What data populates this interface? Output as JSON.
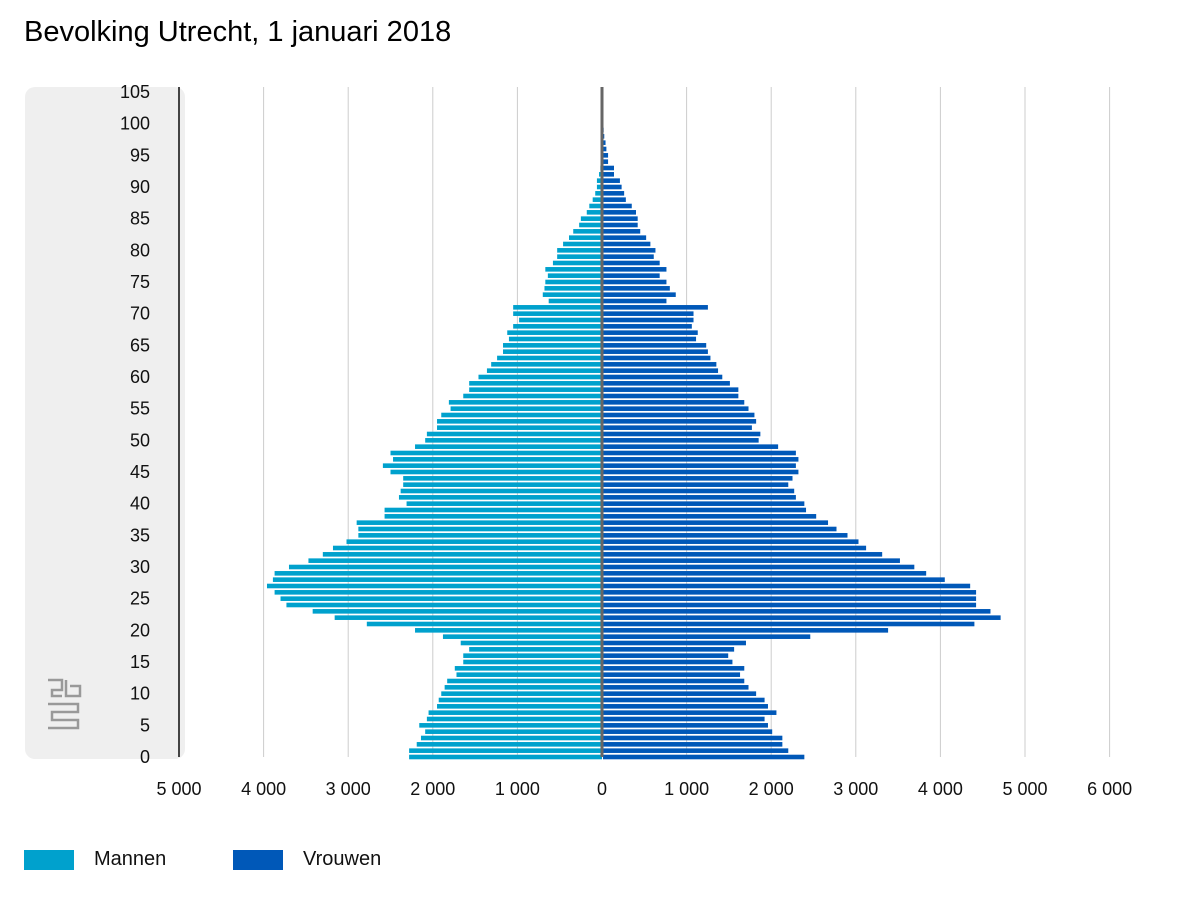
{
  "title": "Bevolking Utrecht, 1 januari 2018",
  "chart_data": {
    "type": "bar",
    "orientation": "horizontal-pyramid",
    "title": "Bevolking Utrecht, 1 januari 2018",
    "xlim": [
      -5000,
      6000
    ],
    "x_ticks": [
      -5000,
      -4000,
      -3000,
      -2000,
      -1000,
      0,
      1000,
      2000,
      3000,
      4000,
      5000,
      6000
    ],
    "x_tick_labels": [
      "5 000",
      "4 000",
      "3 000",
      "2 000",
      "1 000",
      "0",
      "1 000",
      "2 000",
      "3 000",
      "4 000",
      "5 000",
      "6 000"
    ],
    "y_ticks": [
      0,
      5,
      10,
      15,
      20,
      25,
      30,
      35,
      40,
      45,
      50,
      55,
      60,
      65,
      70,
      75,
      80,
      85,
      90,
      95,
      100,
      105
    ],
    "y_tick_labels": [
      "0",
      "5",
      "10",
      "15",
      "20",
      "25",
      "30",
      "35",
      "40",
      "45",
      "50",
      "55",
      "60",
      "65",
      "70",
      "75",
      "80",
      "85",
      "90",
      "95",
      "100",
      "105"
    ],
    "ylim": [
      0,
      105
    ],
    "grid": true,
    "legend_position": "bottom-left",
    "ages_start": 0,
    "series": [
      {
        "name": "Mannen",
        "color": "#00a1cd",
        "side": "left",
        "values": [
          2280,
          2280,
          2190,
          2140,
          2090,
          2160,
          2070,
          2050,
          1950,
          1930,
          1900,
          1860,
          1830,
          1720,
          1740,
          1640,
          1640,
          1570,
          1670,
          1880,
          2210,
          2780,
          3160,
          3420,
          3730,
          3800,
          3870,
          3960,
          3890,
          3870,
          3700,
          3470,
          3300,
          3180,
          3020,
          2880,
          2880,
          2900,
          2570,
          2570,
          2310,
          2400,
          2380,
          2350,
          2350,
          2500,
          2590,
          2470,
          2500,
          2210,
          2090,
          2070,
          1950,
          1950,
          1900,
          1790,
          1810,
          1640,
          1570,
          1570,
          1460,
          1360,
          1310,
          1240,
          1170,
          1170,
          1100,
          1120,
          1050,
          980,
          1050,
          1050,
          630,
          700,
          680,
          670,
          640,
          670,
          580,
          530,
          530,
          460,
          390,
          340,
          270,
          250,
          180,
          150,
          110,
          80,
          60,
          60,
          35,
          20,
          10,
          10,
          5,
          3,
          2,
          1,
          0
        ]
      },
      {
        "name": "Vrouwen",
        "color": "#0058b8",
        "side": "right",
        "values": [
          2380,
          2190,
          2120,
          2120,
          2000,
          1950,
          1910,
          2050,
          1950,
          1910,
          1810,
          1720,
          1670,
          1620,
          1670,
          1530,
          1480,
          1550,
          1690,
          2450,
          3370,
          4390,
          4700,
          4580,
          4410,
          4410,
          4410,
          4340,
          4040,
          3820,
          3680,
          3510,
          3300,
          3110,
          3020,
          2890,
          2760,
          2660,
          2520,
          2400,
          2380,
          2280,
          2260,
          2190,
          2240,
          2310,
          2280,
          2310,
          2280,
          2070,
          1840,
          1860,
          1760,
          1810,
          1790,
          1720,
          1670,
          1600,
          1600,
          1500,
          1410,
          1360,
          1340,
          1270,
          1240,
          1220,
          1100,
          1120,
          1050,
          1070,
          1070,
          1240,
          750,
          860,
          790,
          750,
          670,
          750,
          670,
          600,
          620,
          560,
          510,
          440,
          410,
          410,
          390,
          340,
          270,
          250,
          220,
          200,
          130,
          130,
          60,
          60,
          40,
          30,
          15,
          8,
          3
        ]
      }
    ]
  }
}
